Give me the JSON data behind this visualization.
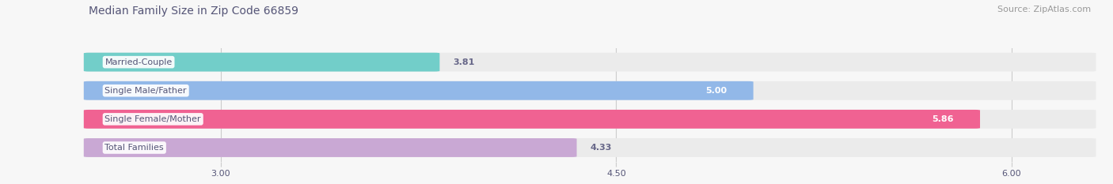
{
  "title": "Median Family Size in Zip Code 66859",
  "source": "Source: ZipAtlas.com",
  "categories": [
    "Married-Couple",
    "Single Male/Father",
    "Single Female/Mother",
    "Total Families"
  ],
  "values": [
    3.81,
    5.0,
    5.86,
    4.33
  ],
  "bar_colors": [
    "#72cec9",
    "#92b8e8",
    "#f06292",
    "#c9a8d4"
  ],
  "xmin": 2.5,
  "xmax": 6.3,
  "xlim_data_min": 2.5,
  "xlim_data_max": 6.3,
  "xticks": [
    3.0,
    4.5,
    6.0
  ],
  "xtick_labels": [
    "3.00",
    "4.50",
    "6.00"
  ],
  "background_color": "#f7f7f7",
  "bar_background_color": "#ebebeb",
  "title_color": "#555577",
  "source_color": "#999999",
  "label_color": "#555577",
  "value_color_inside": "#ffffff",
  "value_color_outside": "#666688",
  "title_fontsize": 10,
  "source_fontsize": 8,
  "label_fontsize": 8,
  "value_fontsize": 8,
  "tick_fontsize": 8,
  "bar_height": 0.62,
  "bar_gap": 0.38
}
